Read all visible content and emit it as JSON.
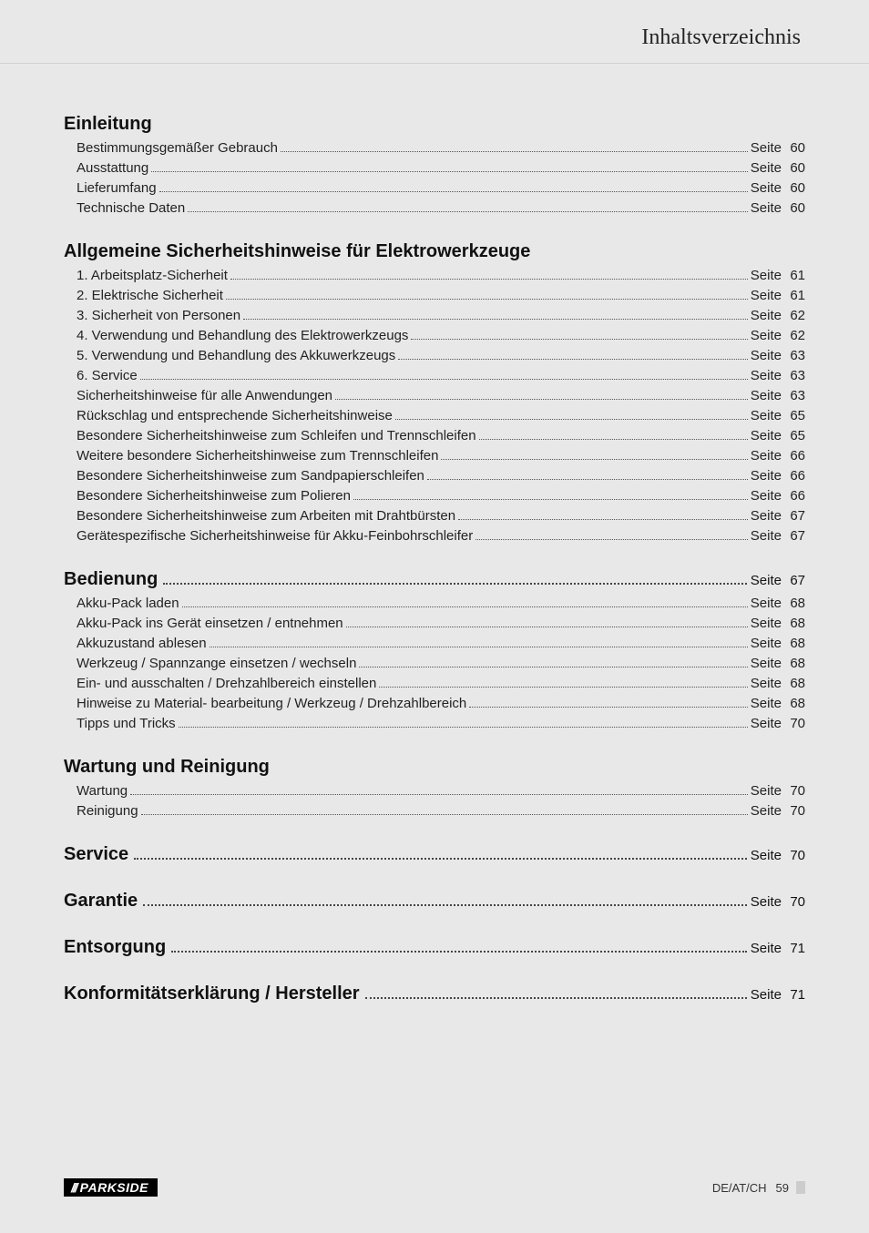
{
  "header": {
    "title": "Inhaltsverzeichnis"
  },
  "page_label": "Seite",
  "sections": [
    {
      "title": "Einleitung",
      "page": null,
      "items": [
        {
          "label": "Bestimmungsgemäßer Gebrauch",
          "page": 60
        },
        {
          "label": "Ausstattung",
          "page": 60
        },
        {
          "label": "Lieferumfang",
          "page": 60
        },
        {
          "label": "Technische Daten",
          "page": 60
        }
      ]
    },
    {
      "title": "Allgemeine Sicherheitshinweise für Elektrowerkzeuge",
      "page": null,
      "items": [
        {
          "label": "1. Arbeitsplatz-Sicherheit",
          "page": 61
        },
        {
          "label": "2. Elektrische Sicherheit",
          "page": 61
        },
        {
          "label": "3. Sicherheit von Personen",
          "page": 62
        },
        {
          "label": "4. Verwendung und Behandlung des Elektrowerkzeugs",
          "page": 62
        },
        {
          "label": "5. Verwendung und Behandlung des Akkuwerkzeugs",
          "page": 63
        },
        {
          "label": "6. Service",
          "page": 63
        },
        {
          "label": "Sicherheitshinweise für alle Anwendungen",
          "page": 63
        },
        {
          "label": "Rückschlag und entsprechende Sicherheitshinweise",
          "page": 65
        },
        {
          "label": "Besondere Sicherheitshinweise zum Schleifen und Trennschleifen",
          "page": 65
        },
        {
          "label": "Weitere besondere Sicherheitshinweise zum Trennschleifen",
          "page": 66
        },
        {
          "label": "Besondere Sicherheitshinweise zum Sandpapierschleifen",
          "page": 66
        },
        {
          "label": "Besondere Sicherheitshinweise zum Polieren",
          "page": 66
        },
        {
          "label": "Besondere Sicherheitshinweise zum Arbeiten mit Drahtbürsten",
          "page": 67
        },
        {
          "label": "Gerätespezifische Sicherheitshinweise für Akku-Feinbohrschleifer",
          "page": 67
        }
      ]
    },
    {
      "title": "Bedienung",
      "page": 67,
      "items": [
        {
          "label": "Akku-Pack laden",
          "page": 68
        },
        {
          "label": "Akku-Pack ins Gerät einsetzen / entnehmen",
          "page": 68
        },
        {
          "label": "Akkuzustand ablesen",
          "page": 68
        },
        {
          "label": "Werkzeug / Spannzange einsetzen / wechseln",
          "page": 68
        },
        {
          "label": "Ein- und ausschalten / Drehzahlbereich einstellen",
          "page": 68
        },
        {
          "label": "Hinweise zu Material- bearbeitung / Werkzeug / Drehzahlbereich",
          "page": 68
        },
        {
          "label": "Tipps und Tricks",
          "page": 70
        }
      ]
    },
    {
      "title": "Wartung und Reinigung",
      "page": null,
      "items": [
        {
          "label": "Wartung",
          "page": 70
        },
        {
          "label": "Reinigung",
          "page": 70
        }
      ]
    },
    {
      "title": "Service",
      "page": 70,
      "items": []
    },
    {
      "title": "Garantie",
      "page": 70,
      "items": []
    },
    {
      "title": "Entsorgung",
      "page": 71,
      "items": []
    },
    {
      "title": "Konformitätserklärung / Hersteller",
      "page": 71,
      "items": []
    }
  ],
  "footer": {
    "brand": "PARKSIDE",
    "brand_prefix": "///",
    "region": "DE/AT/CH",
    "page_number": 59
  }
}
